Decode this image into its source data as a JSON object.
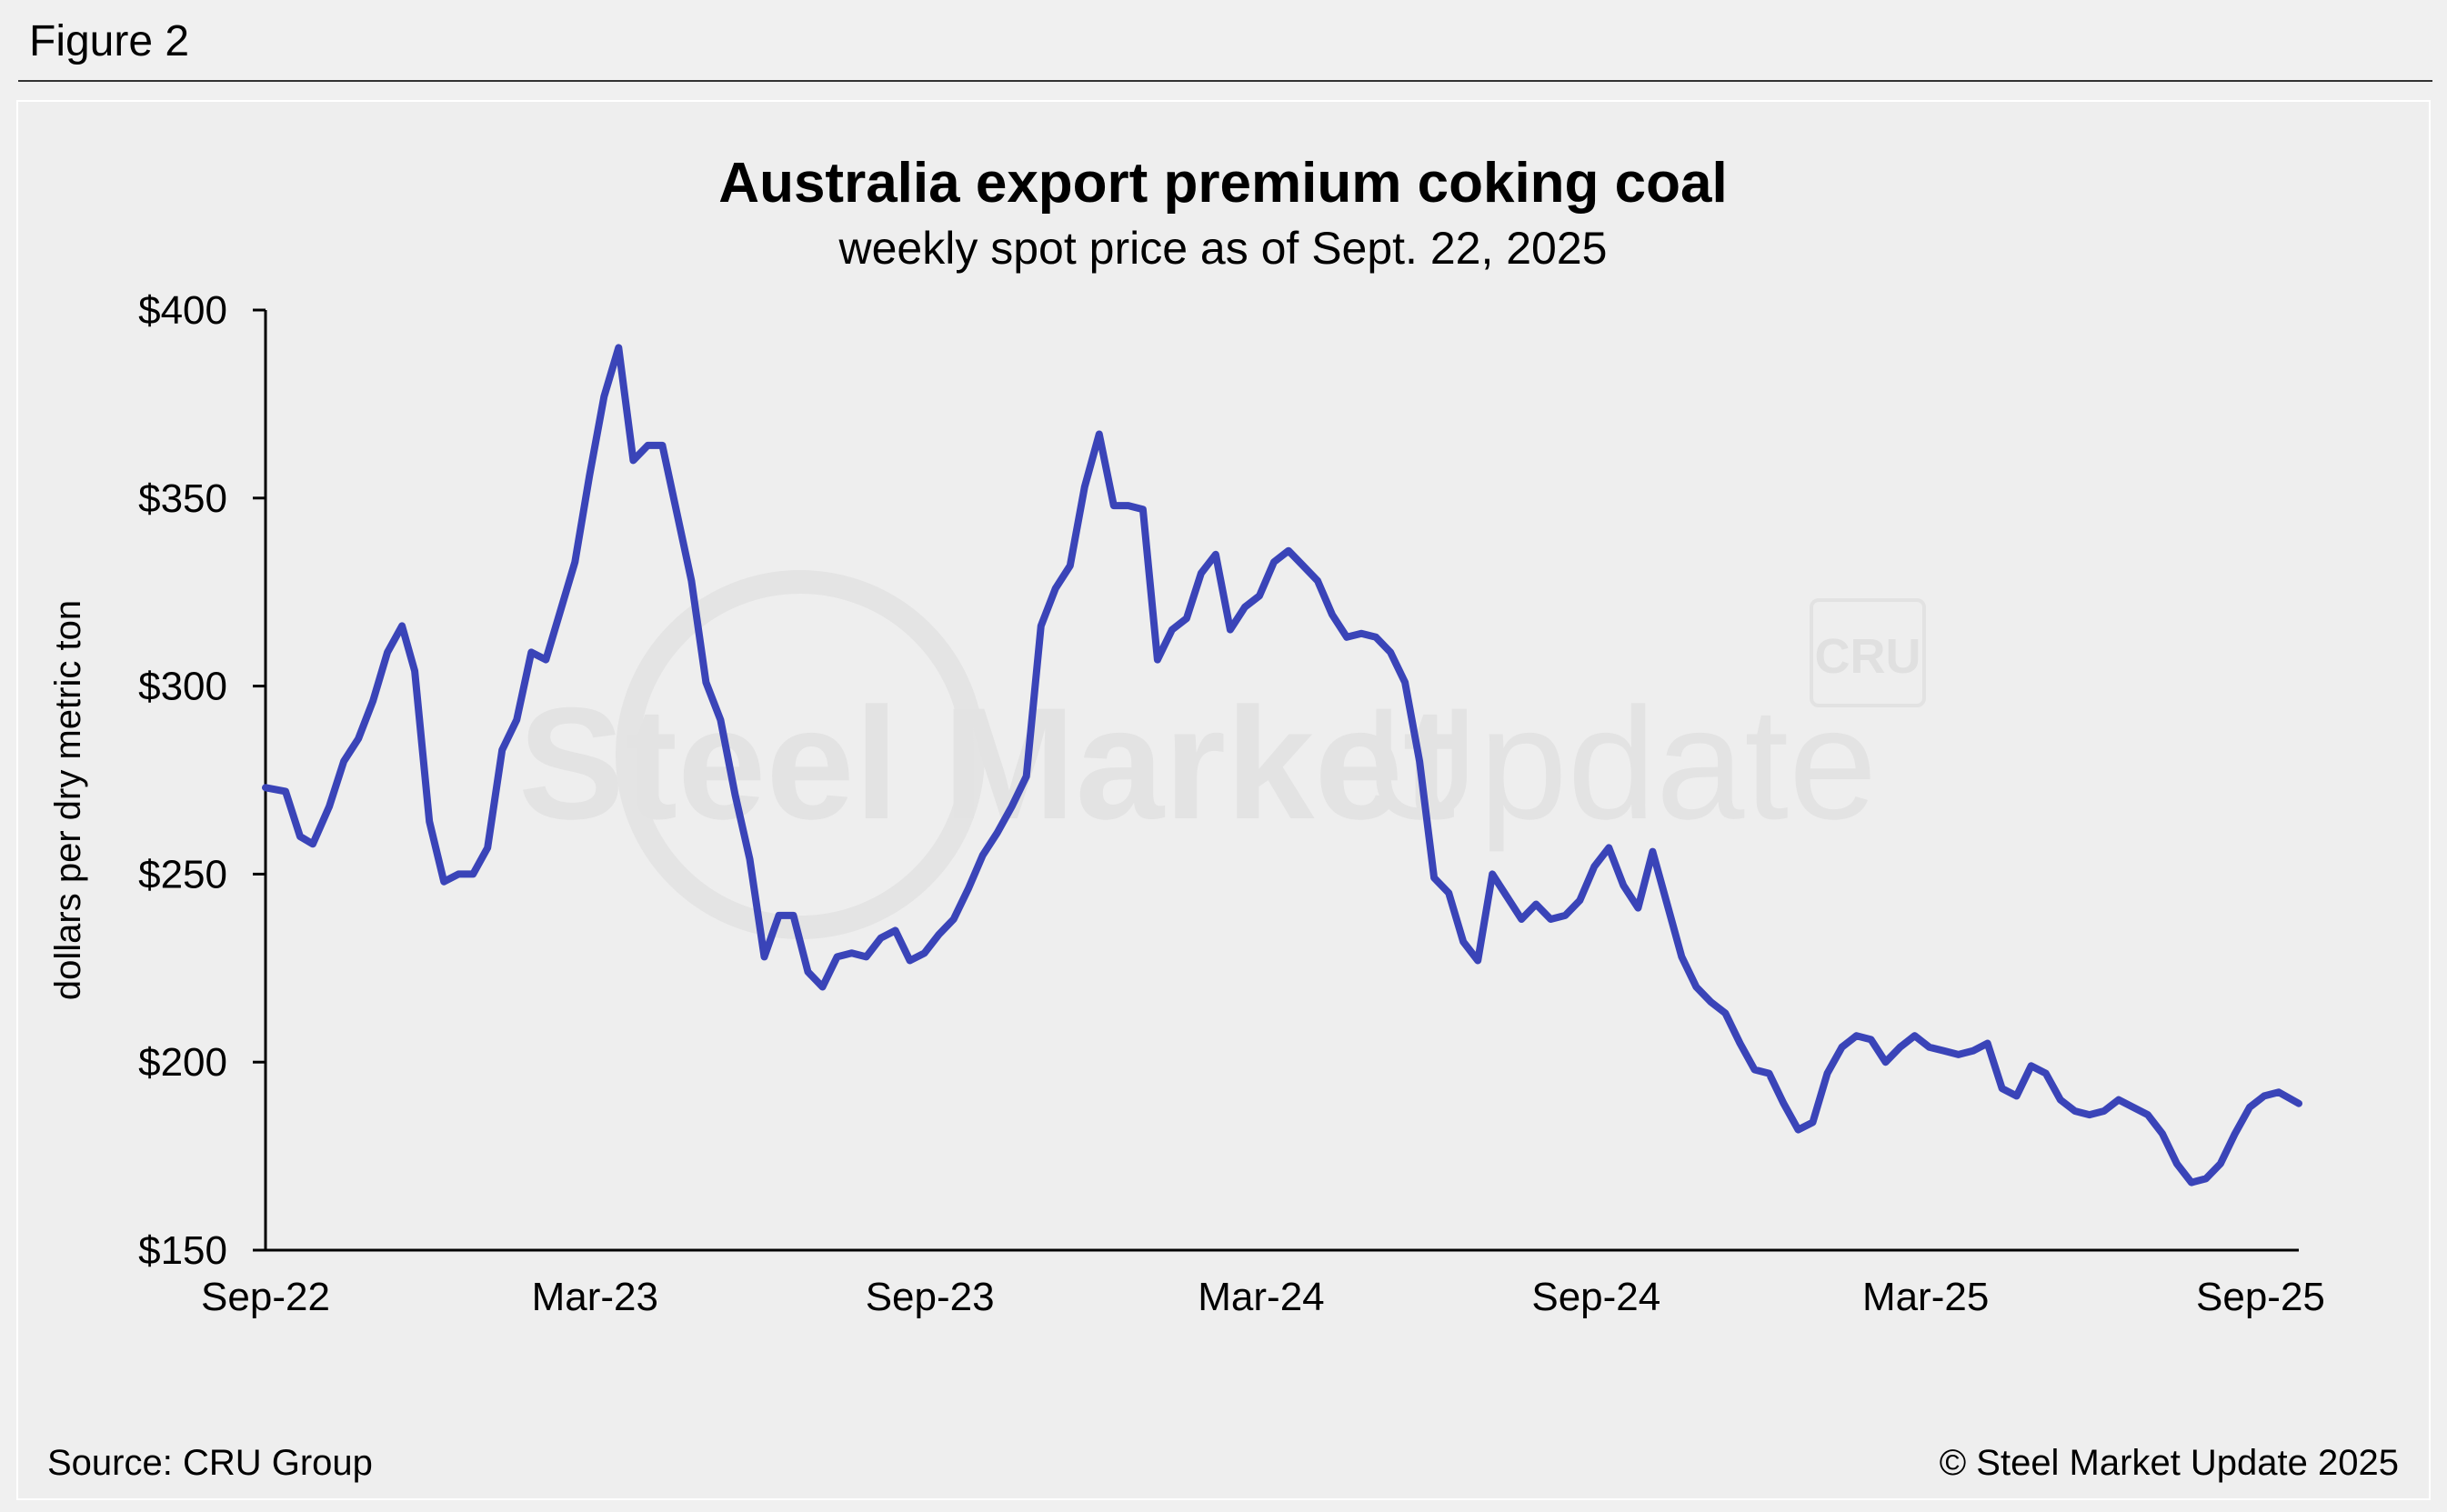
{
  "figure_label": "Figure 2",
  "watermark": {
    "text_bold": "Steel Market",
    "text_light": "Update",
    "badge": "CRU"
  },
  "source": "Source: CRU Group",
  "copyright": "© Steel Market Update 2025",
  "colors": {
    "line": "#3a44b8",
    "axis": "#000000",
    "background": "#eeeeee"
  },
  "chart_data": {
    "type": "line",
    "title": "Australia export premium coking coal",
    "subtitle": "weekly spot price as of Sept. 22, 2025",
    "ylabel": "dollars per dry metric ton",
    "xlabel": "",
    "ylim": [
      150,
      400
    ],
    "xlim": [
      "2022-09-01",
      "2025-09-22"
    ],
    "y_ticks": [
      400,
      350,
      300,
      250,
      200,
      150
    ],
    "y_tick_labels": [
      "$400",
      "$350",
      "$300",
      "$250",
      "$200",
      "$150"
    ],
    "x_tick_dates": [
      "2022-09-01",
      "2023-03-01",
      "2023-09-01",
      "2024-03-01",
      "2024-09-01",
      "2025-03-01",
      "2025-09-01"
    ],
    "x_tick_labels": [
      "Sep-22",
      "Mar-23",
      "Sep-23",
      "Mar-24",
      "Sep-24",
      "Mar-25",
      "Sep-25"
    ],
    "grid": false,
    "legend": "none",
    "series": [
      {
        "points": [
          [
            "2022-09-01",
            273
          ],
          [
            "2022-09-12",
            272
          ],
          [
            "2022-09-20",
            260
          ],
          [
            "2022-09-27",
            258
          ],
          [
            "2022-10-06",
            268
          ],
          [
            "2022-10-14",
            280
          ],
          [
            "2022-10-22",
            286
          ],
          [
            "2022-10-30",
            296
          ],
          [
            "2022-11-07",
            309
          ],
          [
            "2022-11-15",
            316
          ],
          [
            "2022-11-22",
            304
          ],
          [
            "2022-11-30",
            264
          ],
          [
            "2022-12-08",
            248
          ],
          [
            "2022-12-16",
            250
          ],
          [
            "2022-12-24",
            250
          ],
          [
            "2023-01-01",
            257
          ],
          [
            "2023-01-09",
            283
          ],
          [
            "2023-01-17",
            291
          ],
          [
            "2023-01-25",
            309
          ],
          [
            "2023-02-02",
            307
          ],
          [
            "2023-02-10",
            320
          ],
          [
            "2023-02-18",
            333
          ],
          [
            "2023-02-26",
            356
          ],
          [
            "2023-03-06",
            377
          ],
          [
            "2023-03-14",
            390
          ],
          [
            "2023-03-22",
            360
          ],
          [
            "2023-03-30",
            364
          ],
          [
            "2023-04-07",
            364
          ],
          [
            "2023-04-15",
            346
          ],
          [
            "2023-04-23",
            328
          ],
          [
            "2023-05-01",
            301
          ],
          [
            "2023-05-09",
            291
          ],
          [
            "2023-05-17",
            271
          ],
          [
            "2023-05-25",
            254
          ],
          [
            "2023-06-02",
            228
          ],
          [
            "2023-06-10",
            239
          ],
          [
            "2023-06-18",
            239
          ],
          [
            "2023-06-26",
            224
          ],
          [
            "2023-07-04",
            220
          ],
          [
            "2023-07-12",
            228
          ],
          [
            "2023-07-20",
            229
          ],
          [
            "2023-07-28",
            228
          ],
          [
            "2023-08-05",
            233
          ],
          [
            "2023-08-13",
            235
          ],
          [
            "2023-08-21",
            227
          ],
          [
            "2023-08-29",
            229
          ],
          [
            "2023-09-06",
            234
          ],
          [
            "2023-09-14",
            238
          ],
          [
            "2023-09-22",
            246
          ],
          [
            "2023-09-30",
            255
          ],
          [
            "2023-10-08",
            261
          ],
          [
            "2023-10-16",
            268
          ],
          [
            "2023-10-24",
            276
          ],
          [
            "2023-11-01",
            316
          ],
          [
            "2023-11-09",
            326
          ],
          [
            "2023-11-17",
            332
          ],
          [
            "2023-11-25",
            353
          ],
          [
            "2023-12-03",
            367
          ],
          [
            "2023-12-11",
            348
          ],
          [
            "2023-12-19",
            348
          ],
          [
            "2023-12-27",
            347
          ],
          [
            "2024-01-04",
            307
          ],
          [
            "2024-01-12",
            315
          ],
          [
            "2024-01-20",
            318
          ],
          [
            "2024-01-28",
            330
          ],
          [
            "2024-02-05",
            335
          ],
          [
            "2024-02-13",
            315
          ],
          [
            "2024-02-21",
            321
          ],
          [
            "2024-02-29",
            324
          ],
          [
            "2024-03-08",
            333
          ],
          [
            "2024-03-16",
            336
          ],
          [
            "2024-03-24",
            332
          ],
          [
            "2024-04-01",
            328
          ],
          [
            "2024-04-09",
            319
          ],
          [
            "2024-04-17",
            313
          ],
          [
            "2024-04-25",
            314
          ],
          [
            "2024-05-03",
            313
          ],
          [
            "2024-05-11",
            309
          ],
          [
            "2024-05-19",
            301
          ],
          [
            "2024-05-27",
            280
          ],
          [
            "2024-06-04",
            249
          ],
          [
            "2024-06-12",
            245
          ],
          [
            "2024-06-20",
            232
          ],
          [
            "2024-06-28",
            227
          ],
          [
            "2024-07-06",
            250
          ],
          [
            "2024-07-14",
            244
          ],
          [
            "2024-07-22",
            238
          ],
          [
            "2024-07-30",
            242
          ],
          [
            "2024-08-07",
            238
          ],
          [
            "2024-08-15",
            239
          ],
          [
            "2024-08-23",
            243
          ],
          [
            "2024-08-31",
            252
          ],
          [
            "2024-09-08",
            257
          ],
          [
            "2024-09-16",
            247
          ],
          [
            "2024-09-24",
            241
          ],
          [
            "2024-10-02",
            256
          ],
          [
            "2024-10-10",
            242
          ],
          [
            "2024-10-18",
            228
          ],
          [
            "2024-10-26",
            220
          ],
          [
            "2024-11-03",
            216
          ],
          [
            "2024-11-11",
            213
          ],
          [
            "2024-11-19",
            205
          ],
          [
            "2024-11-27",
            198
          ],
          [
            "2024-12-05",
            197
          ],
          [
            "2024-12-13",
            189
          ],
          [
            "2024-12-21",
            182
          ],
          [
            "2024-12-29",
            184
          ],
          [
            "2025-01-06",
            197
          ],
          [
            "2025-01-14",
            204
          ],
          [
            "2025-01-22",
            207
          ],
          [
            "2025-01-30",
            206
          ],
          [
            "2025-02-07",
            200
          ],
          [
            "2025-02-15",
            204
          ],
          [
            "2025-02-23",
            207
          ],
          [
            "2025-03-03",
            204
          ],
          [
            "2025-03-11",
            203
          ],
          [
            "2025-03-19",
            202
          ],
          [
            "2025-03-27",
            203
          ],
          [
            "2025-04-04",
            205
          ],
          [
            "2025-04-12",
            193
          ],
          [
            "2025-04-20",
            191
          ],
          [
            "2025-04-28",
            199
          ],
          [
            "2025-05-06",
            197
          ],
          [
            "2025-05-14",
            190
          ],
          [
            "2025-05-22",
            187
          ],
          [
            "2025-05-30",
            186
          ],
          [
            "2025-06-07",
            187
          ],
          [
            "2025-06-15",
            190
          ],
          [
            "2025-06-23",
            188
          ],
          [
            "2025-07-01",
            186
          ],
          [
            "2025-07-09",
            181
          ],
          [
            "2025-07-17",
            173
          ],
          [
            "2025-07-25",
            168
          ],
          [
            "2025-08-02",
            169
          ],
          [
            "2025-08-10",
            173
          ],
          [
            "2025-08-18",
            181
          ],
          [
            "2025-08-26",
            188
          ],
          [
            "2025-09-03",
            191
          ],
          [
            "2025-09-11",
            192
          ],
          [
            "2025-09-22",
            189
          ]
        ]
      }
    ]
  }
}
